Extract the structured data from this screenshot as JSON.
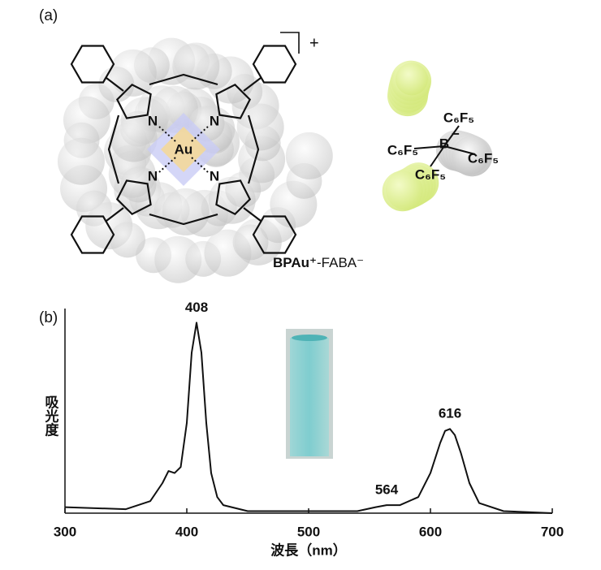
{
  "panel_a": {
    "label": "(a)",
    "charge": "+",
    "nitrogen": [
      "N",
      "N",
      "N",
      "N"
    ],
    "metal": "Au",
    "boron": "B",
    "boron_charge": "−",
    "substituents": [
      "C₆F₅",
      "C₆F₅",
      "C₆F₅",
      "C₆F₅"
    ],
    "caption_cation": "BPAu⁺",
    "caption_anion": "-FABA⁻"
  },
  "chart_data": {
    "type": "line",
    "panel_label": "(b)",
    "x_label": "波長（nm）",
    "y_label": "吸光度",
    "xlim": [
      300,
      700
    ],
    "xticks": [
      300,
      400,
      500,
      600,
      700
    ],
    "ylim": [
      0,
      1
    ],
    "x": [
      300,
      350,
      370,
      380,
      385,
      390,
      395,
      400,
      404,
      408,
      412,
      416,
      420,
      425,
      430,
      450,
      500,
      540,
      555,
      564,
      575,
      590,
      600,
      608,
      612,
      616,
      620,
      625,
      632,
      640,
      660,
      700
    ],
    "series": [
      {
        "name": "BPAu⁺-FABA⁻",
        "color": "#111111",
        "values": [
          0.03,
          0.02,
          0.06,
          0.15,
          0.21,
          0.2,
          0.23,
          0.45,
          0.8,
          0.95,
          0.8,
          0.45,
          0.2,
          0.08,
          0.04,
          0.01,
          0.01,
          0.01,
          0.03,
          0.04,
          0.04,
          0.08,
          0.2,
          0.35,
          0.41,
          0.42,
          0.39,
          0.3,
          0.15,
          0.05,
          0.01,
          0.0
        ]
      }
    ],
    "annotations": [
      408,
      564,
      616
    ]
  }
}
